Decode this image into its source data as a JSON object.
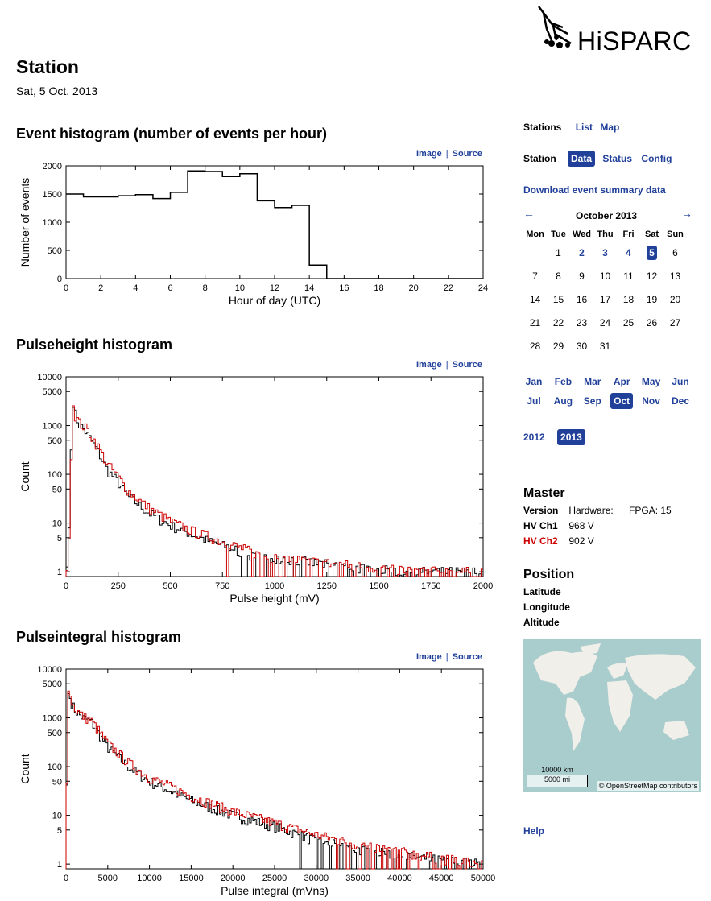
{
  "brand": {
    "logo_text": "HiSPARC"
  },
  "page": {
    "title": "Station",
    "date": "Sat, 5 Oct. 2013"
  },
  "links": {
    "image": "Image",
    "source": "Source"
  },
  "event_hist": {
    "title": "Event histogram (number of events per hour)",
    "xlabel": "Hour of day (UTC)",
    "ylabel": "Number of events",
    "xticks": [
      "0",
      "2",
      "4",
      "6",
      "8",
      "10",
      "12",
      "14",
      "16",
      "18",
      "20",
      "22",
      "24"
    ],
    "yticks": [
      "0",
      "500",
      "1000",
      "1500",
      "2000"
    ]
  },
  "pulseheight": {
    "title": "Pulseheight histogram",
    "xlabel": "Pulse height (mV)",
    "ylabel": "Count",
    "xticks": [
      "0",
      "250",
      "500",
      "750",
      "1000",
      "1250",
      "1500",
      "1750",
      "2000"
    ],
    "yticks": [
      "1",
      "5",
      "10",
      "50",
      "100",
      "500",
      "1000",
      "5000",
      "10000"
    ]
  },
  "pulseintegral": {
    "title": "Pulseintegral histogram",
    "xlabel": "Pulse integral (mVns)",
    "ylabel": "Count",
    "xticks": [
      "0",
      "5000",
      "10000",
      "15000",
      "20000",
      "25000",
      "30000",
      "35000",
      "40000",
      "45000",
      "50000"
    ],
    "yticks": [
      "1",
      "5",
      "10",
      "50",
      "100",
      "500",
      "1000",
      "5000",
      "10000"
    ]
  },
  "chart_data": [
    {
      "type": "line",
      "title": "Event histogram (number of events per hour)",
      "xlabel": "Hour of day (UTC)",
      "ylabel": "Number of events",
      "xlim": [
        0,
        24
      ],
      "ylim": [
        0,
        2000
      ],
      "x": [
        0,
        1,
        2,
        3,
        4,
        5,
        6,
        7,
        8,
        9,
        10,
        11,
        12,
        13,
        14,
        15,
        16,
        17,
        18,
        19,
        20,
        21,
        22,
        23
      ],
      "series": [
        {
          "values": [
            1500,
            1450,
            1450,
            1470,
            1490,
            1420,
            1530,
            1910,
            1900,
            1810,
            1860,
            1380,
            1260,
            1300,
            240,
            0,
            0,
            0,
            0,
            0,
            0,
            0,
            0,
            0
          ]
        }
      ]
    },
    {
      "type": "line",
      "title": "Pulseheight histogram",
      "xlabel": "Pulse height (mV)",
      "ylabel": "Count",
      "xlim": [
        0,
        2000
      ],
      "ylim": [
        1,
        10000
      ],
      "yscale": "log",
      "series": [
        {
          "color": "#000000",
          "x": [
            0,
            20,
            30,
            40,
            60,
            80,
            100,
            150,
            200,
            250,
            300,
            400,
            500,
            600,
            700,
            800,
            900,
            1000,
            1200,
            1400,
            1600,
            1800,
            2000
          ],
          "values": [
            0,
            20,
            5000,
            2000,
            1100,
            900,
            700,
            320,
            120,
            70,
            35,
            16,
            9,
            6,
            4,
            3,
            2,
            2,
            1.5,
            1.2,
            1,
            1,
            1
          ]
        },
        {
          "color": "#cc0000",
          "x": [
            0,
            20,
            30,
            40,
            60,
            80,
            100,
            150,
            200,
            250,
            300,
            400,
            500,
            600,
            700,
            800,
            900,
            1000,
            1200,
            1400,
            1600,
            1800,
            2000
          ],
          "values": [
            0,
            10,
            4000,
            1800,
            1200,
            1000,
            850,
            400,
            160,
            90,
            45,
            20,
            11,
            7,
            5,
            3.5,
            2.5,
            2,
            1.6,
            1.3,
            1.1,
            1,
            1
          ]
        }
      ]
    },
    {
      "type": "line",
      "title": "Pulseintegral histogram",
      "xlabel": "Pulse integral (mVns)",
      "ylabel": "Count",
      "xlim": [
        0,
        50000
      ],
      "ylim": [
        1,
        10000
      ],
      "yscale": "log",
      "series": [
        {
          "color": "#000000",
          "x": [
            0,
            200,
            500,
            1000,
            2000,
            3000,
            5000,
            7500,
            10000,
            15000,
            20000,
            25000,
            30000,
            35000,
            40000,
            45000,
            50000
          ],
          "values": [
            0,
            3500,
            2500,
            1500,
            1000,
            850,
            250,
            100,
            50,
            20,
            10,
            6,
            3,
            2,
            1.5,
            1.2,
            1
          ]
        },
        {
          "color": "#cc0000",
          "x": [
            0,
            200,
            500,
            1000,
            2000,
            3000,
            5000,
            7500,
            10000,
            15000,
            20000,
            25000,
            30000,
            35000,
            40000,
            45000,
            50000
          ],
          "values": [
            0,
            4000,
            2800,
            1600,
            1100,
            900,
            300,
            120,
            60,
            25,
            12,
            7,
            4,
            2.5,
            1.8,
            1.3,
            1
          ]
        }
      ]
    }
  ],
  "sidebar": {
    "stations_label": "Stations",
    "list": "List",
    "map": "Map",
    "station_label": "Station",
    "data": "Data",
    "status": "Status",
    "config": "Config",
    "download": "Download event summary data",
    "prev_arrow": "←",
    "next_arrow": "→",
    "month_title": "October 2013",
    "weekdays": [
      "Mon",
      "Tue",
      "Wed",
      "Thu",
      "Fri",
      "Sat",
      "Sun"
    ],
    "months_row1": [
      "Jan",
      "Feb",
      "Mar",
      "Apr",
      "May",
      "Jun"
    ],
    "months_row2": [
      "Jul",
      "Aug",
      "Sep",
      "Oct",
      "Nov",
      "Dec"
    ],
    "years": [
      "2012",
      "2013"
    ],
    "master_title": "Master",
    "version_label": "Version",
    "hardware_label": "Hardware:",
    "fpga": "FPGA: 15",
    "hv1_label": "HV Ch1",
    "hv1_value": "968 V",
    "hv2_label": "HV Ch2",
    "hv2_value": "902 V",
    "position_title": "Position",
    "latitude": "Latitude",
    "longitude": "Longitude",
    "altitude": "Altitude",
    "map_scale_km": "10000 km",
    "map_scale_mi": "5000 mi",
    "map_attr": "© OpenStreetMap contributors",
    "help": "Help"
  },
  "colors": {
    "link": "#21409a",
    "ch2": "#cc0000"
  }
}
